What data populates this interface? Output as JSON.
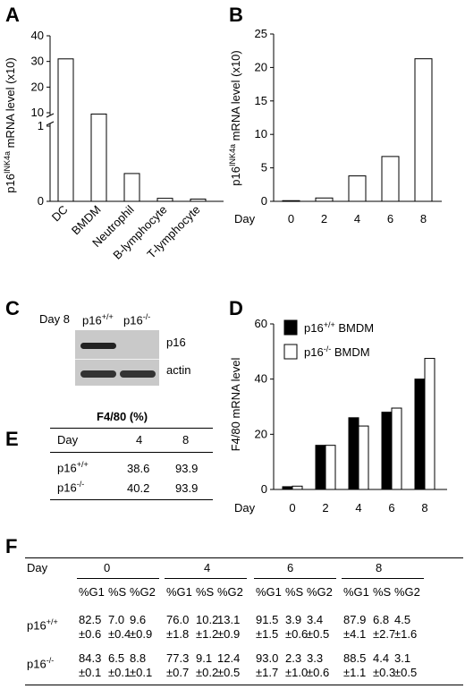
{
  "panels": {
    "A": "A",
    "B": "B",
    "C": "C",
    "D": "D",
    "E": "E",
    "F": "F"
  },
  "chart_data": [
    {
      "panel": "A",
      "type": "bar",
      "ylabel_main": "p16",
      "ylabel_sup": "INK4a",
      "ylabel_rest": " mRNA level (x10)",
      "axis_break": true,
      "upper_ticks": [
        "10",
        "20",
        "30",
        "40"
      ],
      "lower_ticks": [
        "0",
        "1"
      ],
      "categories": [
        "DC",
        "BMDM",
        "Neutrophil",
        "B-lymphocyte",
        "T-lymphocyte"
      ],
      "values": [
        31,
        9.5,
        0.37,
        0.04,
        0.03
      ]
    },
    {
      "panel": "B",
      "type": "bar",
      "ylabel_main": "p16",
      "ylabel_sup": "INK4a",
      "ylabel_rest": " mRNA level (x10)",
      "xlabel": "Day",
      "categories": [
        "0",
        "2",
        "4",
        "6",
        "8"
      ],
      "values": [
        0.1,
        0.5,
        3.8,
        6.7,
        21.3
      ],
      "ylim": [
        0,
        25
      ],
      "yticks": [
        "0",
        "5",
        "10",
        "15",
        "20",
        "25"
      ]
    },
    {
      "panel": "D",
      "type": "bar",
      "ylabel": "F4/80 mRNA level",
      "xlabel": "Day",
      "categories": [
        "0",
        "2",
        "4",
        "6",
        "8"
      ],
      "series": [
        {
          "name_main": "p16",
          "name_sup": "+/+",
          "name_rest": " BMDM",
          "fill": "#000000",
          "values": [
            1,
            16,
            26,
            28,
            40
          ]
        },
        {
          "name_main": "p16",
          "name_sup": "-/-",
          "name_rest": " BMDM",
          "fill": "#ffffff",
          "values": [
            1.2,
            16,
            23,
            29.5,
            47.5
          ]
        }
      ],
      "ylim": [
        0,
        60
      ],
      "yticks": [
        "0",
        "20",
        "40",
        "60"
      ],
      "legend": "top-left"
    }
  ],
  "panelC": {
    "day": "Day 8",
    "col1_main": "p16",
    "col1_sup": "+/+",
    "col2_main": "p16",
    "col2_sup": "-/-",
    "label1": "p16",
    "label2": "actin"
  },
  "panelE": {
    "title": "F4/80 (%)",
    "header": [
      "Day",
      "4",
      "8"
    ],
    "rows": [
      {
        "main": "p16",
        "sup": "+/+",
        "v4": "38.6",
        "v8": "93.9"
      },
      {
        "main": "p16",
        "sup": "-/-",
        "v4": "40.2",
        "v8": "93.9"
      }
    ]
  },
  "panelF": {
    "day_label": "Day",
    "days": [
      "0",
      "4",
      "6",
      "8"
    ],
    "subheaders": [
      "%G1",
      "%S",
      "%G2"
    ],
    "rows": [
      {
        "main": "p16",
        "sup": "+/+",
        "groups": [
          [
            [
              "82.5",
              "±0.6"
            ],
            [
              "7.0",
              "±0.4"
            ],
            [
              "9.6",
              "±0.9"
            ]
          ],
          [
            [
              "76.0",
              "±1.8"
            ],
            [
              "10.2",
              "±1.2"
            ],
            [
              "13.1",
              "±0.9"
            ]
          ],
          [
            [
              "91.5",
              "±1.5"
            ],
            [
              "3.9",
              "±0.6"
            ],
            [
              "3.4",
              "±0.5"
            ]
          ],
          [
            [
              "87.9",
              "±4.1"
            ],
            [
              "6.8",
              "±2.7"
            ],
            [
              "4.5",
              "±1.6"
            ]
          ]
        ]
      },
      {
        "main": "p16",
        "sup": "-/-",
        "groups": [
          [
            [
              "84.3",
              "±0.1"
            ],
            [
              "6.5",
              "±0.1"
            ],
            [
              "8.8",
              "±0.1"
            ]
          ],
          [
            [
              "77.3",
              "±0.7"
            ],
            [
              "9.1",
              "±0.2"
            ],
            [
              "12.4",
              "±0.5"
            ]
          ],
          [
            [
              "93.0",
              "±1.7"
            ],
            [
              "2.3",
              "±1.0"
            ],
            [
              "3.3",
              "±0.6"
            ]
          ],
          [
            [
              "88.5",
              "±1.1"
            ],
            [
              "4.4",
              "±0.3"
            ],
            [
              "3.1",
              "±0.5"
            ]
          ]
        ]
      }
    ]
  }
}
